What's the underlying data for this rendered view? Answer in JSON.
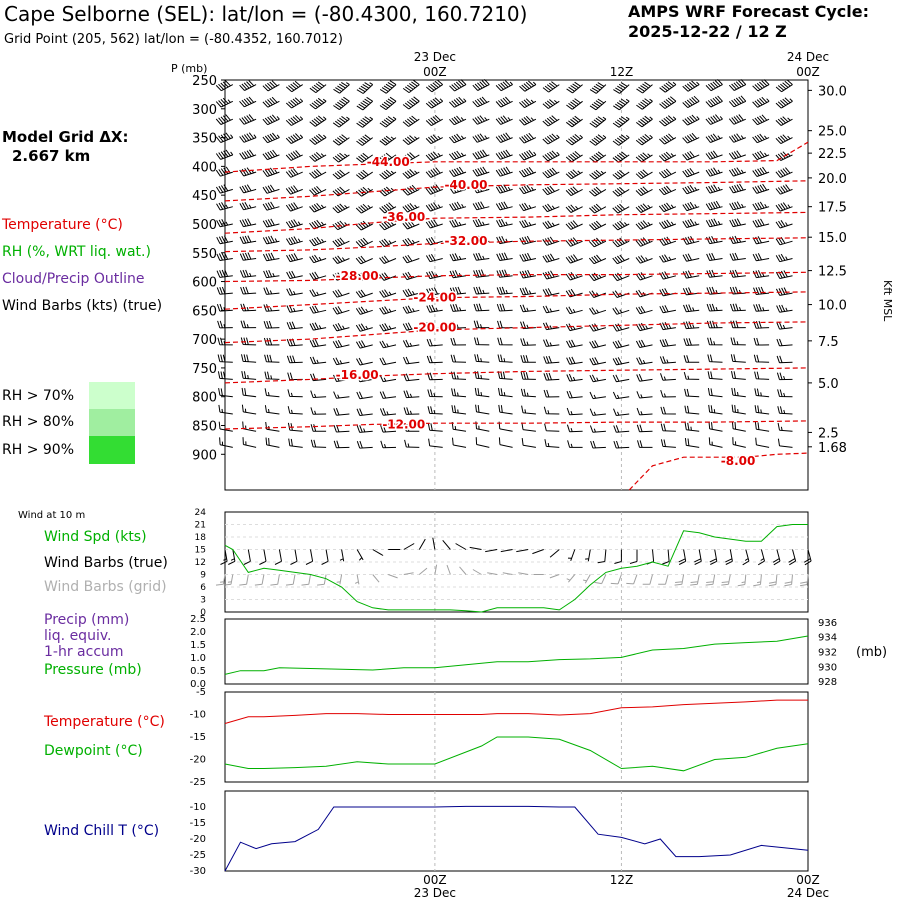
{
  "header": {
    "title": "Cape Selborne (SEL):  lat/lon = (-80.4300, 160.7210)",
    "subtitle": "Grid Point (205, 562) lat/lon = (-80.4352, 160.7012)",
    "cycle_title": "AMPS WRF Forecast Cycle:",
    "cycle_value": "2025-12-22 / 12  Z"
  },
  "colors": {
    "temperature": "#e00000",
    "rh": "#00b000",
    "cloud": "#6a2ca0",
    "wind": "#000000",
    "wind_grid": "#a0a0a0",
    "windchill": "#00008b",
    "rh70": "#ccffcc",
    "rh80": "#a0eea0",
    "rh90": "#33dd33"
  },
  "legend": {
    "model_grid_label": "Model Grid ΔX:",
    "model_grid_value": "2.667 km",
    "temperature": "Temperature (°C)",
    "rh": "RH (%, WRT liq. wat.)",
    "cloud": "Cloud/Precip Outline",
    "wind_barbs": "Wind Barbs (kts) (true)",
    "rh70": "RH > 70%",
    "rh80": "RH > 80%",
    "rh90": "RH > 90%"
  },
  "time_axis": {
    "top_dates": [
      "23 Dec",
      "24 Dec"
    ],
    "top_hours": [
      "00Z",
      "12Z",
      "00Z"
    ],
    "bottom_hours": [
      "00Z",
      "12Z",
      "00Z"
    ],
    "bottom_dates": [
      "23 Dec",
      "24 Dec"
    ],
    "x_start": -13.5,
    "x_end": 24
  },
  "chart_data": [
    {
      "type": "line",
      "name": "upper-air cross-section",
      "y_axis_label": "P (mb)",
      "y_ticks": [
        250,
        300,
        350,
        400,
        450,
        500,
        550,
        600,
        650,
        700,
        750,
        800,
        850,
        900
      ],
      "ylim": [
        962,
        250
      ],
      "right_axis_label": "Kft MSL",
      "right_ticks": [
        {
          "label": "30.0",
          "p": 268
        },
        {
          "label": "25.0",
          "p": 338
        },
        {
          "label": "22.5",
          "p": 377
        },
        {
          "label": "20.0",
          "p": 420
        },
        {
          "label": "17.5",
          "p": 470
        },
        {
          "label": "15.0",
          "p": 523
        },
        {
          "label": "12.5",
          "p": 581
        },
        {
          "label": "10.0",
          "p": 640
        },
        {
          "label": "7.5",
          "p": 703
        },
        {
          "label": "5.0",
          "p": 776
        },
        {
          "label": "2.5",
          "p": 862
        },
        {
          "label": "1.68",
          "p": 887
        }
      ],
      "barb_levels": [
        258,
        287,
        318,
        350,
        380,
        410,
        440,
        470,
        500,
        530,
        560,
        590,
        620,
        650,
        680,
        710,
        740,
        770,
        800,
        830,
        860,
        888
      ],
      "isotherms": [
        {
          "label": "-44.00",
          "label_x": -3,
          "label_p": 392,
          "x": [
            -13.5,
            -8,
            -4,
            0,
            6,
            12,
            18,
            22,
            24
          ],
          "p": [
            410,
            400,
            396,
            392,
            392,
            392,
            392,
            390,
            358
          ]
        },
        {
          "label": "-40.00",
          "label_x": 2,
          "label_p": 432,
          "x": [
            -13.5,
            -8,
            -4,
            0,
            6,
            12,
            18,
            24
          ],
          "p": [
            460,
            452,
            444,
            436,
            432,
            430,
            428,
            425
          ]
        },
        {
          "label": "-36.00",
          "label_x": -2,
          "label_p": 488,
          "x": [
            -13.5,
            -8,
            -4,
            0,
            6,
            12,
            18,
            24
          ],
          "p": [
            516,
            508,
            498,
            490,
            488,
            484,
            482,
            480
          ]
        },
        {
          "label": "-32.00",
          "label_x": 2,
          "label_p": 530,
          "x": [
            -13.5,
            -8,
            -4,
            0,
            6,
            12,
            18,
            24
          ],
          "p": [
            548,
            545,
            540,
            534,
            530,
            528,
            526,
            524
          ]
        },
        {
          "label": "-28.00",
          "label_x": -5,
          "label_p": 590,
          "x": [
            -13.5,
            -8,
            -4,
            0,
            6,
            12,
            18,
            24
          ],
          "p": [
            600,
            598,
            594,
            590,
            588,
            588,
            586,
            584
          ]
        },
        {
          "label": "-24.00",
          "label_x": 0,
          "label_p": 628,
          "x": [
            -13.5,
            -8,
            -4,
            0,
            6,
            12,
            18,
            24
          ],
          "p": [
            648,
            640,
            634,
            628,
            626,
            622,
            620,
            618
          ]
        },
        {
          "label": "-20.00",
          "label_x": 0,
          "label_p": 680,
          "x": [
            -13.5,
            -8,
            -4,
            0,
            6,
            12,
            18,
            24
          ],
          "p": [
            706,
            700,
            692,
            684,
            680,
            676,
            672,
            670
          ]
        },
        {
          "label": "-16.00",
          "label_x": -5,
          "label_p": 762,
          "x": [
            -13.5,
            -8,
            -4,
            0,
            6,
            12,
            18,
            24
          ],
          "p": [
            776,
            770,
            764,
            760,
            756,
            754,
            752,
            750
          ]
        },
        {
          "label": "-12.00",
          "label_x": -2,
          "label_p": 848,
          "x": [
            -13.5,
            -8,
            -4,
            0,
            6,
            12,
            18,
            24
          ],
          "p": [
            856,
            852,
            848,
            846,
            846,
            844,
            844,
            842
          ]
        },
        {
          "label": "-8.00",
          "label_x": 19.5,
          "label_p": 912,
          "x": [
            12.5,
            14,
            16,
            18,
            20,
            22,
            24
          ],
          "p": [
            962,
            920,
            905,
            905,
            905,
            900,
            898
          ]
        }
      ]
    },
    {
      "type": "line",
      "name": "wind at 10 m",
      "panel_title": "Wind at 10 m",
      "labels": {
        "speed": "Wind Spd (kts)",
        "barbs_true": "Wind Barbs (true)",
        "barbs_grid": "Wind Barbs (grid)"
      },
      "y_ticks": [
        0,
        3,
        6,
        9,
        12,
        15,
        18,
        21,
        24
      ],
      "ylim": [
        0,
        24
      ],
      "x": [
        -13.5,
        -13,
        -12,
        -11,
        -10,
        -9,
        -8,
        -7,
        -6,
        -5,
        -4,
        -3,
        -2,
        -1,
        0,
        1,
        2,
        3,
        4,
        5,
        6,
        7,
        8,
        9,
        10,
        11,
        12,
        13,
        14,
        15,
        16,
        17,
        18,
        19,
        20,
        21,
        22,
        23,
        24
      ],
      "values": [
        16,
        15,
        9.5,
        10.5,
        10,
        9.5,
        9,
        8,
        6,
        2.5,
        1,
        0.5,
        0.5,
        0.5,
        0.5,
        0.5,
        0.3,
        0,
        1,
        1,
        1,
        1,
        0.5,
        3,
        6.5,
        9.5,
        10.5,
        11,
        12,
        11,
        19.5,
        19,
        18,
        17.5,
        17,
        17,
        20.5,
        21,
        21
      ],
      "barb_dirs": [
        170,
        170,
        170,
        170,
        170,
        170,
        170,
        170,
        170,
        150,
        120,
        90,
        60,
        30,
        350,
        320,
        300,
        280,
        260,
        260,
        260,
        250,
        230,
        200,
        190,
        185,
        180,
        180,
        175,
        175,
        170,
        170,
        170,
        170,
        165,
        165,
        165,
        165,
        165
      ]
    },
    {
      "type": "line",
      "name": "precipitation and pressure",
      "labels": {
        "precip": "Precip (mm)",
        "precip2": "liq. equiv.",
        "precip3": "1-hr accum",
        "pressure": "Pressure (mb)",
        "right_unit": "(mb)"
      },
      "y_ticks_left": [
        "0.0",
        "0.5",
        "1.0",
        "1.5",
        "2.0",
        "2.5"
      ],
      "ylim_left": [
        0,
        2.5
      ],
      "y_ticks_right": [
        928,
        930,
        932,
        934,
        936
      ],
      "ylim_right": [
        927.6,
        936.4
      ],
      "x": [
        -13.5,
        -12.5,
        -11,
        -10,
        -8,
        -6,
        -4,
        -2,
        0,
        2,
        4,
        6,
        8,
        10,
        12,
        14,
        16,
        18,
        20,
        22,
        24
      ],
      "pressure": [
        928.9,
        929.4,
        929.4,
        929.8,
        929.7,
        929.6,
        929.5,
        929.8,
        929.8,
        930.2,
        930.6,
        930.6,
        930.9,
        931.0,
        931.2,
        932.2,
        932.4,
        933.0,
        933.2,
        933.4,
        934.1
      ],
      "precip": []
    },
    {
      "type": "line",
      "name": "temperature and dewpoint",
      "labels": {
        "temperature": "Temperature (°C)",
        "dewpoint": "Dewpoint (°C)"
      },
      "y_ticks": [
        -5,
        -10,
        -15,
        -20,
        -25
      ],
      "ylim": [
        -25,
        -5
      ],
      "x": [
        -13.5,
        -12,
        -11,
        -9,
        -7,
        -5,
        -3,
        0,
        3,
        4,
        6,
        8,
        10,
        12,
        14,
        16,
        18,
        20,
        22,
        24
      ],
      "temperature": [
        -12,
        -10.5,
        -10.5,
        -10.2,
        -9.8,
        -9.8,
        -10,
        -10,
        -10,
        -9.8,
        -9.8,
        -10.1,
        -9.8,
        -8.5,
        -8.3,
        -7.8,
        -7.5,
        -7.2,
        -6.8,
        -6.8
      ],
      "dewpoint": [
        -21,
        -22,
        -22,
        -21.8,
        -21.5,
        -20.5,
        -21,
        -21,
        -17,
        -15,
        -15,
        -15.5,
        -18,
        -22,
        -21.5,
        -22.5,
        -20,
        -19.5,
        -17.5,
        -16.5
      ]
    },
    {
      "type": "line",
      "name": "wind chill",
      "labels": {
        "windchill": "Wind Chill T (°C)"
      },
      "y_ticks": [
        -10,
        -15,
        -20,
        -25,
        -30
      ],
      "ylim": [
        -30,
        -5
      ],
      "x": [
        -13.5,
        -12.5,
        -11.5,
        -10.5,
        -9,
        -7.5,
        -6.5,
        -5.5,
        -4,
        -2,
        0,
        2,
        4,
        6,
        8,
        9,
        10.5,
        12,
        13.5,
        14.5,
        15.5,
        17,
        19,
        21,
        23,
        24
      ],
      "values": [
        -30,
        -21,
        -23,
        -21.5,
        -20.8,
        -17,
        -10,
        -10,
        -10,
        -10,
        -10,
        -9.8,
        -9.8,
        -9.8,
        -10,
        -10,
        -18.5,
        -19.5,
        -21.5,
        -20,
        -25.5,
        -25.5,
        -25,
        -22,
        -23,
        -23.5
      ]
    }
  ]
}
